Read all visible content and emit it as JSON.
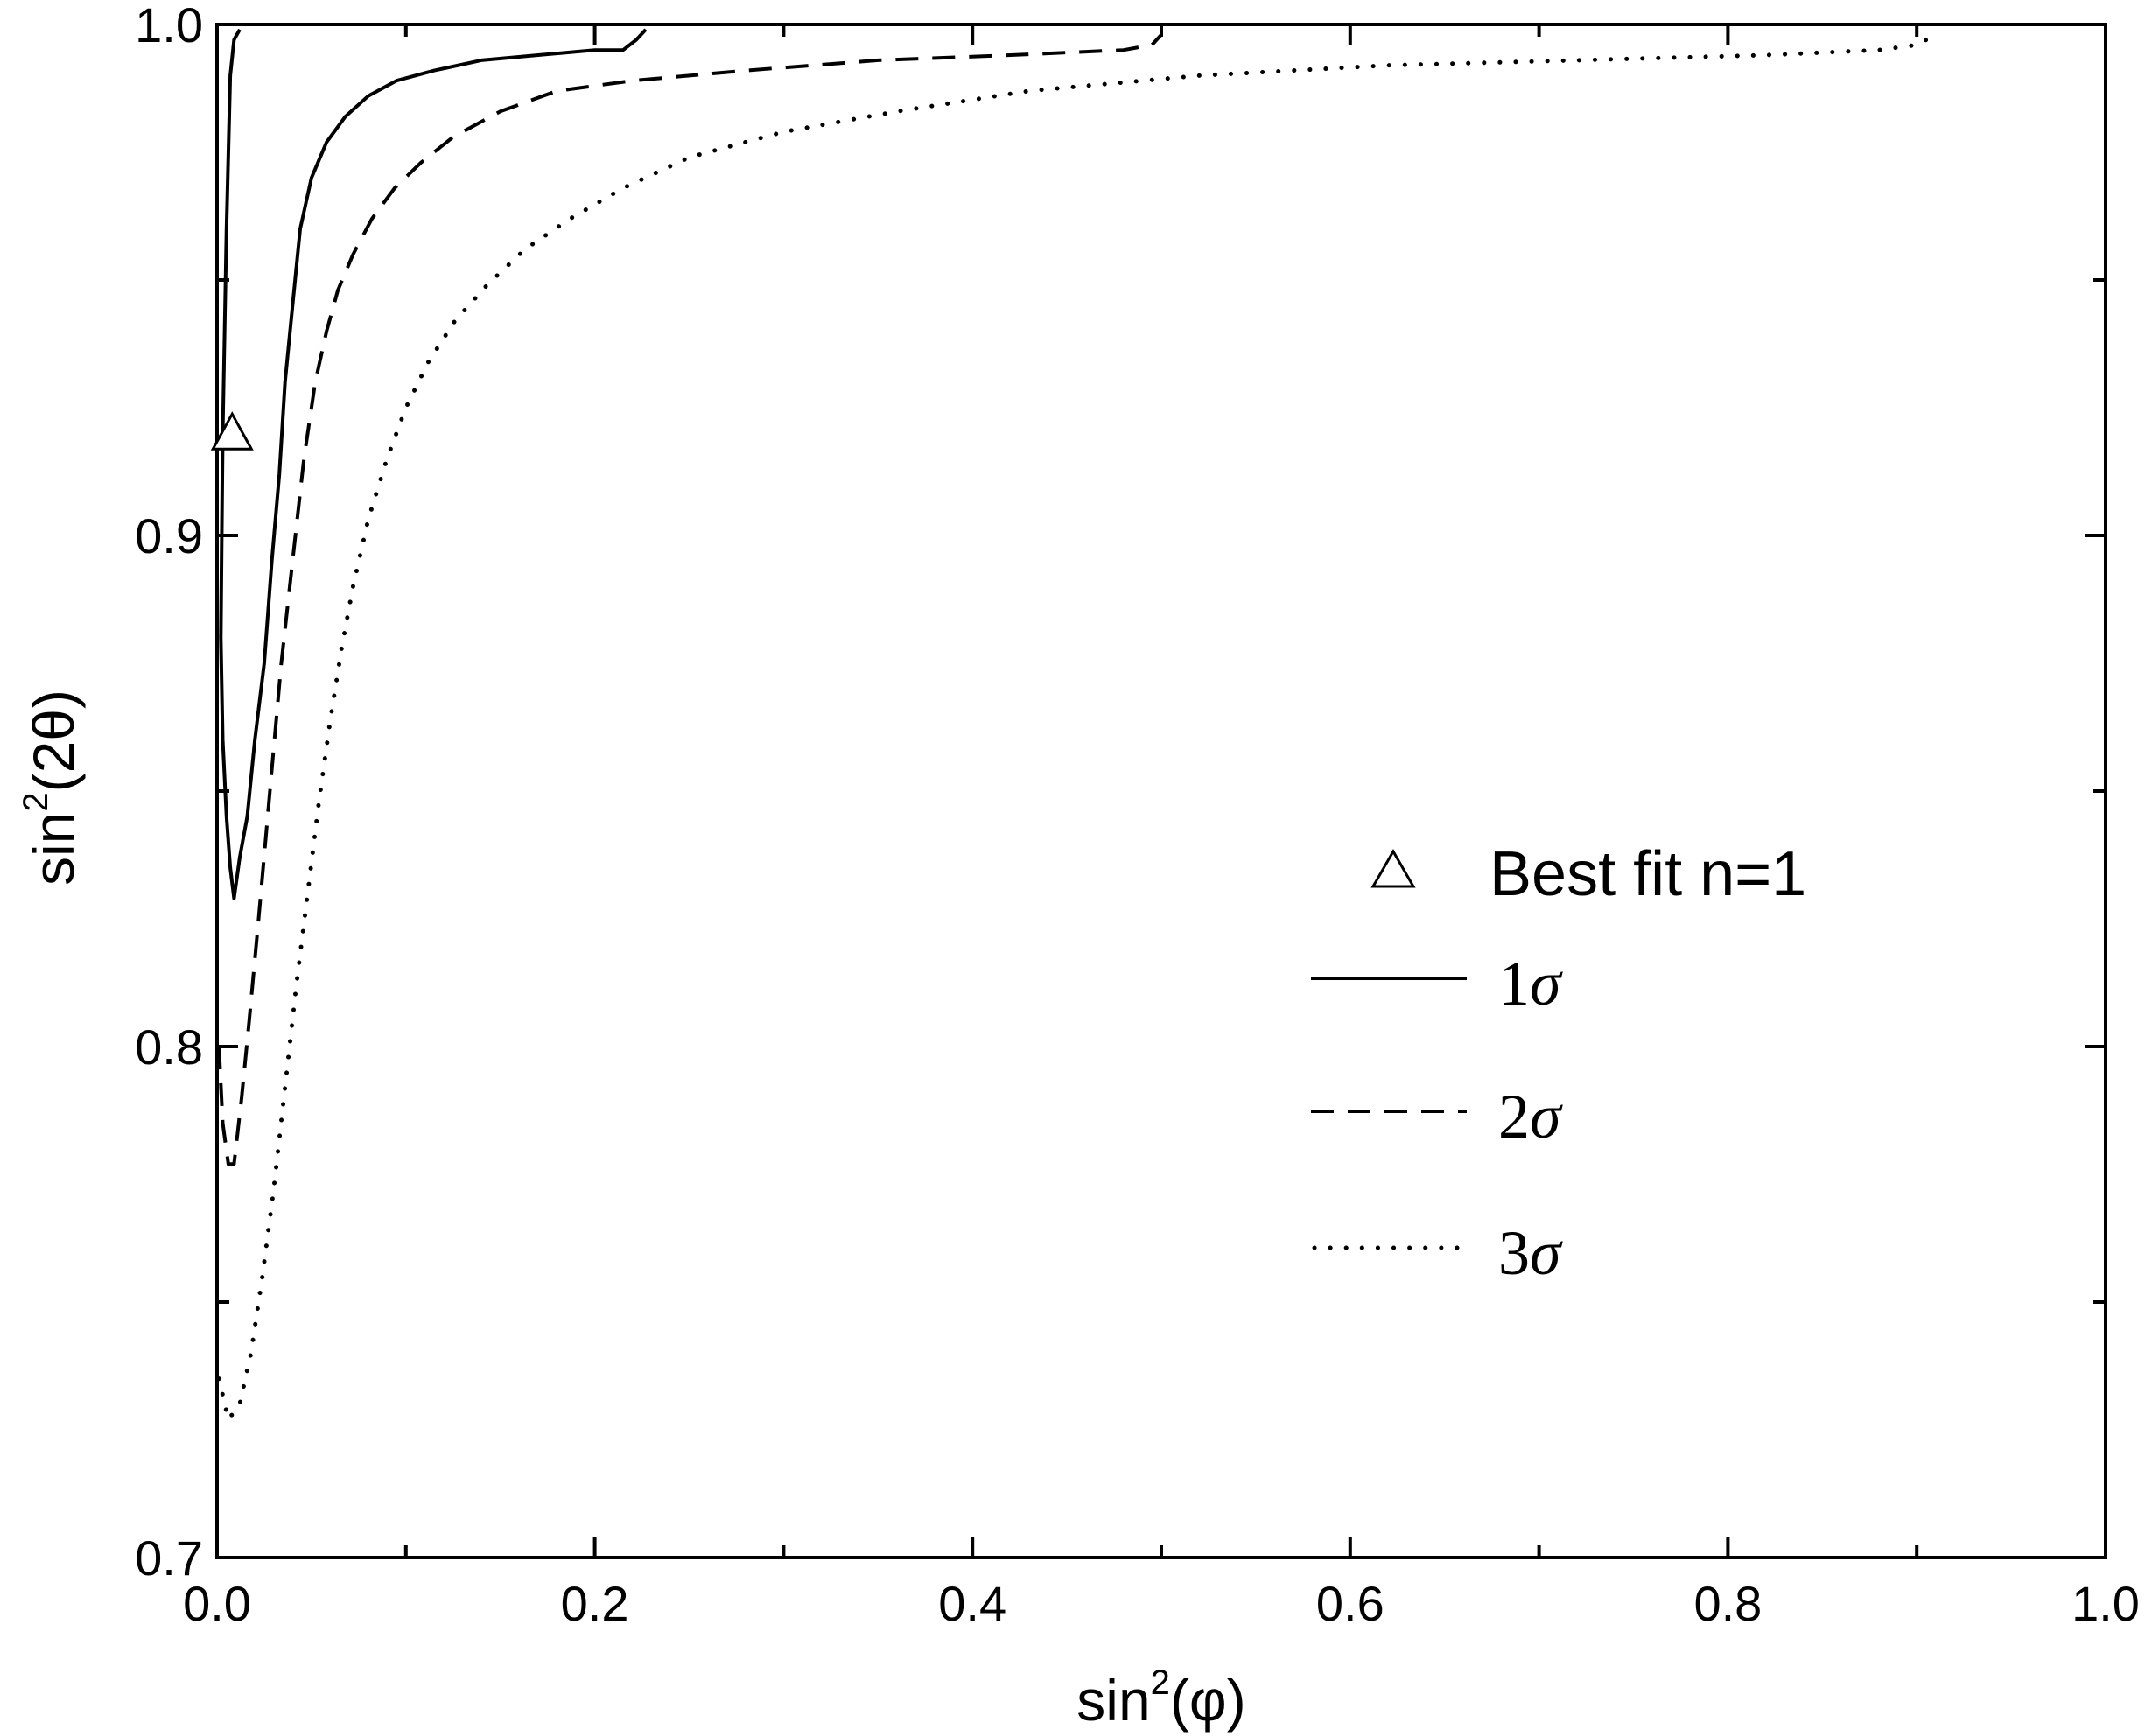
{
  "chart_data": {
    "type": "line",
    "title": "",
    "xlabel": {
      "base": "sin",
      "exp": "2",
      "arg": "(φ)"
    },
    "ylabel": {
      "base": "sin",
      "exp": "2",
      "arg": "(2θ)"
    },
    "xlim": [
      0.0,
      1.0
    ],
    "ylim": [
      0.7,
      1.0
    ],
    "x_ticks": [
      0.0,
      0.2,
      0.4,
      0.6,
      0.8,
      1.0
    ],
    "x_tick_labels": [
      "0.0",
      "0.2",
      "0.4",
      "0.6",
      "0.8",
      "1.0"
    ],
    "x_minor_ticks": [
      0.1,
      0.3,
      0.5,
      0.7,
      0.9
    ],
    "y_ticks": [
      0.7,
      0.8,
      0.9,
      1.0
    ],
    "y_tick_labels": [
      "0.7",
      "0.8",
      "0.9",
      "1.0"
    ],
    "y_minor_ticks": [
      0.75,
      0.85,
      0.95
    ],
    "grid": false,
    "legend_position": "center-right",
    "best_fit": {
      "label": "Best fit n=1",
      "marker": "open-triangle",
      "x": 0.008,
      "y": 0.92
    },
    "series": [
      {
        "name": "1σ",
        "legend_num": "1",
        "legend_sym": "σ",
        "style": "solid",
        "x": [
          0.012,
          0.009,
          0.007,
          0.005,
          0.003,
          0.002,
          0.003,
          0.005,
          0.007,
          0.009,
          0.012,
          0.016,
          0.02,
          0.025,
          0.029,
          0.033,
          0.036,
          0.04,
          0.044,
          0.05,
          0.058,
          0.068,
          0.08,
          0.095,
          0.115,
          0.14,
          0.17,
          0.2,
          0.215,
          0.222,
          0.227
        ],
        "y": [
          0.999,
          0.997,
          0.99,
          0.96,
          0.92,
          0.88,
          0.86,
          0.845,
          0.835,
          0.829,
          0.837,
          0.845,
          0.86,
          0.875,
          0.895,
          0.912,
          0.93,
          0.945,
          0.96,
          0.97,
          0.977,
          0.982,
          0.986,
          0.989,
          0.991,
          0.993,
          0.994,
          0.995,
          0.995,
          0.997,
          0.999
        ]
      },
      {
        "name": "2σ",
        "legend_num": "2",
        "legend_sym": "σ",
        "style": "dashed",
        "x": [
          0.001,
          0.003,
          0.006,
          0.009,
          0.013,
          0.017,
          0.022,
          0.028,
          0.034,
          0.04,
          0.046,
          0.052,
          0.058,
          0.064,
          0.072,
          0.082,
          0.094,
          0.108,
          0.125,
          0.15,
          0.18,
          0.22,
          0.28,
          0.35,
          0.42,
          0.48,
          0.495,
          0.5
        ],
        "y": [
          0.8,
          0.785,
          0.777,
          0.777,
          0.79,
          0.805,
          0.825,
          0.85,
          0.875,
          0.895,
          0.915,
          0.93,
          0.94,
          0.948,
          0.955,
          0.962,
          0.968,
          0.973,
          0.978,
          0.983,
          0.987,
          0.989,
          0.991,
          0.993,
          0.994,
          0.995,
          0.996,
          0.998
        ]
      },
      {
        "name": "3σ",
        "legend_num": "3",
        "legend_sym": "σ",
        "style": "dotted",
        "x": [
          0.001,
          0.006,
          0.012,
          0.018,
          0.024,
          0.03,
          0.036,
          0.042,
          0.048,
          0.054,
          0.06,
          0.066,
          0.072,
          0.08,
          0.09,
          0.1,
          0.112,
          0.126,
          0.143,
          0.163,
          0.187,
          0.215,
          0.25,
          0.3,
          0.36,
          0.43,
          0.52,
          0.62,
          0.72,
          0.82,
          0.88,
          0.9,
          0.905
        ],
        "y": [
          0.735,
          0.727,
          0.73,
          0.74,
          0.755,
          0.772,
          0.792,
          0.812,
          0.83,
          0.848,
          0.864,
          0.878,
          0.89,
          0.903,
          0.915,
          0.925,
          0.934,
          0.942,
          0.949,
          0.956,
          0.962,
          0.968,
          0.974,
          0.979,
          0.983,
          0.987,
          0.99,
          0.992,
          0.993,
          0.994,
          0.995,
          0.996,
          0.997
        ]
      }
    ]
  }
}
